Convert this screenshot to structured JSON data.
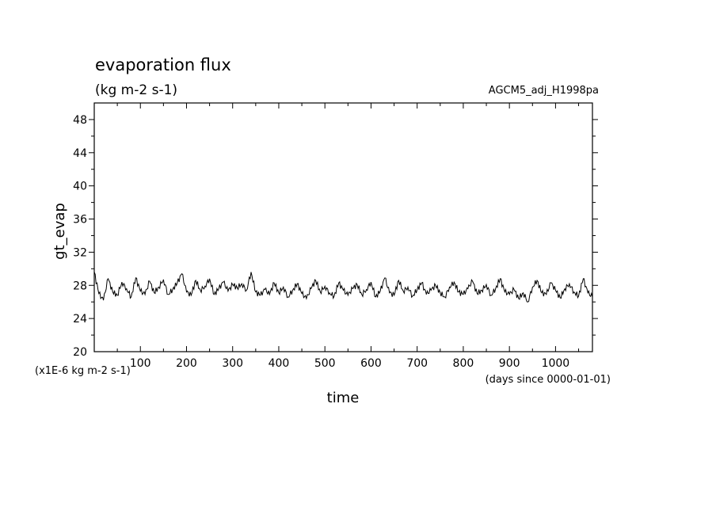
{
  "chart_data": {
    "type": "line",
    "title": "evaporation flux",
    "subtitle": "(kg m-2 s-1)",
    "dataset_label": "AGCM5_adj_H1998pa",
    "xlabel": "time",
    "x_unit_label": "(days since 0000-01-01)",
    "ylabel": "gt_evap",
    "y_unit_label": "(x1E-6 kg m-2 s-1)",
    "xlim": [
      0,
      1080
    ],
    "ylim": [
      20,
      50
    ],
    "x_major_ticks": [
      100,
      200,
      300,
      400,
      500,
      600,
      700,
      800,
      900,
      1000
    ],
    "y_major_ticks": [
      20,
      24,
      28,
      32,
      36,
      40,
      44,
      48
    ],
    "grid": false,
    "line_color": "#000000",
    "series": [
      {
        "x": [
          0,
          10,
          20,
          30,
          40,
          50,
          60,
          70,
          80,
          90,
          100,
          110,
          120,
          130,
          140,
          150,
          160,
          170,
          180,
          190,
          200,
          210,
          220,
          230,
          240,
          250,
          260,
          270,
          280,
          290,
          300,
          310,
          320,
          330,
          340,
          350,
          360,
          370,
          380,
          390,
          400,
          410,
          420,
          430,
          440,
          450,
          460,
          470,
          480,
          490,
          500,
          510,
          520,
          530,
          540,
          550,
          560,
          570,
          580,
          590,
          600,
          610,
          620,
          630,
          640,
          650,
          660,
          670,
          680,
          690,
          700,
          710,
          720,
          730,
          740,
          750,
          760,
          770,
          780,
          790,
          800,
          810,
          820,
          830,
          840,
          850,
          860,
          870,
          880,
          890,
          900,
          910,
          920,
          930,
          940,
          950,
          960,
          970,
          980,
          990,
          1000,
          1010,
          1020,
          1030,
          1040,
          1050,
          1060,
          1070,
          1080
        ],
        "values": [
          29.6,
          27.0,
          26.2,
          28.8,
          27.2,
          26.8,
          28.4,
          27.6,
          26.6,
          28.9,
          27.3,
          26.9,
          28.5,
          27.1,
          27.8,
          28.7,
          26.9,
          27.5,
          28.3,
          29.4,
          27.2,
          26.8,
          28.6,
          27.4,
          27.9,
          28.8,
          26.9,
          27.6,
          28.4,
          27.3,
          28.1,
          27.7,
          28.2,
          27.4,
          29.6,
          27.2,
          26.8,
          27.5,
          26.9,
          28.3,
          27.1,
          27.8,
          26.6,
          27.4,
          28.2,
          27.0,
          26.4,
          27.6,
          28.6,
          27.2,
          27.9,
          27.1,
          26.7,
          28.3,
          27.4,
          26.8,
          27.6,
          28.1,
          26.9,
          27.5,
          28.4,
          26.6,
          27.3,
          28.9,
          27.1,
          26.8,
          28.6,
          27.3,
          27.8,
          26.7,
          27.5,
          28.3,
          26.9,
          27.4,
          28.0,
          27.1,
          26.6,
          27.8,
          28.4,
          27.2,
          26.9,
          27.6,
          28.5,
          27.0,
          27.4,
          28.1,
          26.8,
          27.6,
          28.8,
          27.2,
          26.9,
          27.5,
          26.4,
          27.1,
          26.0,
          27.8,
          28.6,
          27.1,
          26.9,
          28.3,
          27.4,
          26.5,
          27.6,
          28.2,
          27.2,
          26.7,
          28.8,
          27.1,
          26.6
        ]
      }
    ]
  }
}
